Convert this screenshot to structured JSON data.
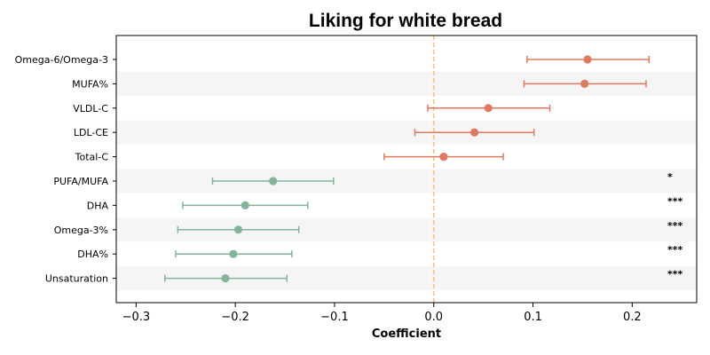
{
  "chart_data": {
    "type": "forest",
    "title": "Liking for white bread",
    "xlabel": "Coefficient",
    "ylabel": "",
    "xlim": [
      -0.32,
      0.265
    ],
    "xticks": [
      -0.3,
      -0.2,
      -0.1,
      0.0,
      0.1,
      0.2
    ],
    "xtick_labels": [
      "−0.3",
      "−0.2",
      "−0.1",
      "0.0",
      "0.1",
      "0.2"
    ],
    "reference_line": {
      "x": 0.0,
      "style": "dashed",
      "color": "#f2c77e"
    },
    "alternating_row_shading": true,
    "colors": {
      "positive": "#de7a5f",
      "negative": "#82b59a",
      "row_shade": "#f5f5f5"
    },
    "categories": [
      "Omega-6/Omega-3",
      "MUFA%",
      "VLDL-C",
      "LDL-CE",
      "Total-C",
      "PUFA/MUFA",
      "DHA",
      "Omega-3%",
      "DHA%",
      "Unsaturation"
    ],
    "estimates": [
      0.155,
      0.152,
      0.055,
      0.041,
      0.01,
      -0.162,
      -0.19,
      -0.197,
      -0.202,
      -0.21
    ],
    "ci_low": [
      0.094,
      0.091,
      -0.006,
      -0.019,
      -0.05,
      -0.223,
      -0.253,
      -0.258,
      -0.26,
      -0.271
    ],
    "ci_high": [
      0.217,
      0.214,
      0.117,
      0.101,
      0.07,
      -0.101,
      -0.127,
      -0.136,
      -0.143,
      -0.148
    ],
    "significance": [
      "",
      "",
      "",
      "",
      "",
      "*",
      "***",
      "***",
      "***",
      "***"
    ]
  }
}
